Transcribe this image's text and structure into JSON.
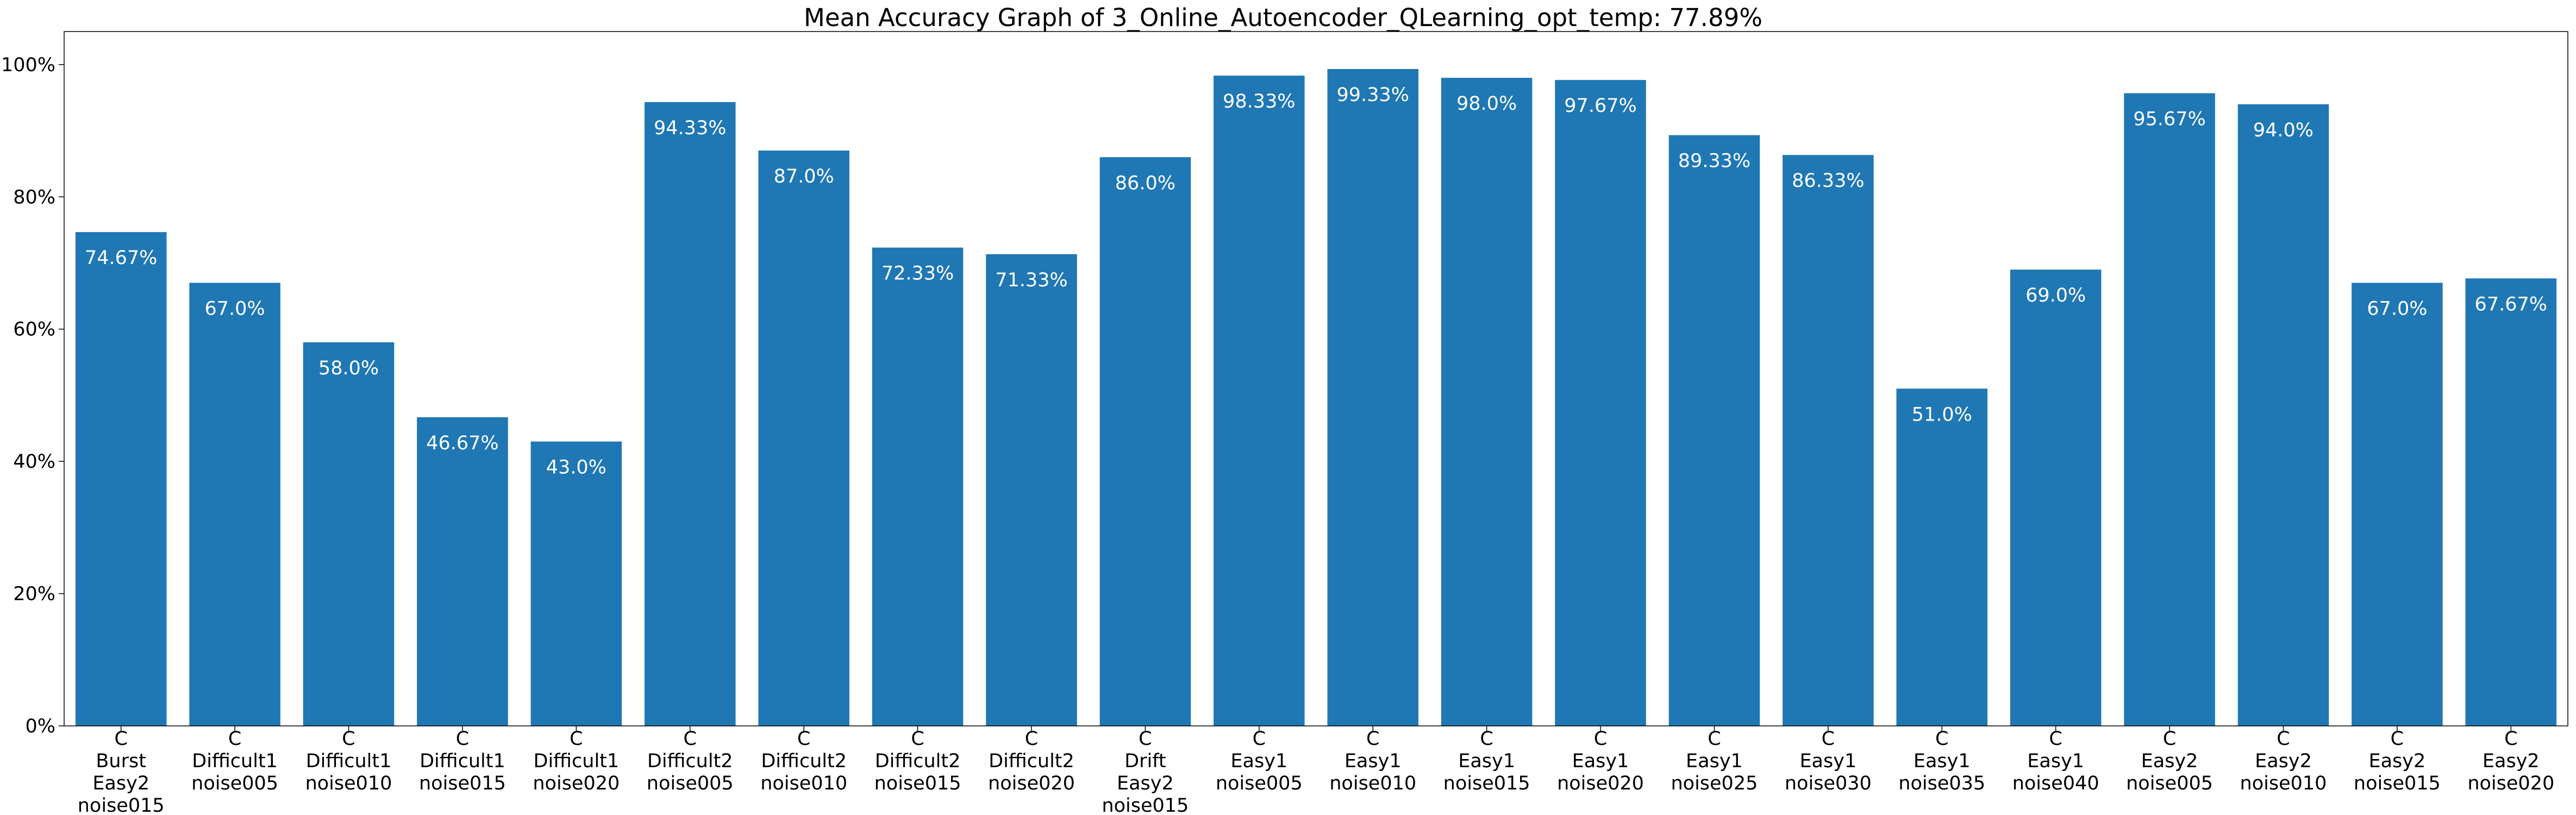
{
  "chart_data": {
    "type": "bar",
    "title": "Mean Accuracy Graph of 3_Online_Autoencoder_QLearning_opt_temp: 77.89%",
    "xlabel": "",
    "ylabel": "",
    "ylim": [
      0,
      1.05
    ],
    "yticks": [
      0,
      0.2,
      0.4,
      0.6,
      0.8,
      1.0
    ],
    "ytick_labels": [
      "0%",
      "20%",
      "40%",
      "60%",
      "80%",
      "100%"
    ],
    "grid": false,
    "bar_color": "#1f77b4",
    "label_color": "#ffffff",
    "categories": [
      [
        "C",
        "Burst",
        "Easy2",
        "noise015"
      ],
      [
        "C",
        "Difficult1",
        "noise005"
      ],
      [
        "C",
        "Difficult1",
        "noise010"
      ],
      [
        "C",
        "Difficult1",
        "noise015"
      ],
      [
        "C",
        "Difficult1",
        "noise020"
      ],
      [
        "C",
        "Difficult2",
        "noise005"
      ],
      [
        "C",
        "Difficult2",
        "noise010"
      ],
      [
        "C",
        "Difficult2",
        "noise015"
      ],
      [
        "C",
        "Difficult2",
        "noise020"
      ],
      [
        "C",
        "Drift",
        "Easy2",
        "noise015"
      ],
      [
        "C",
        "Easy1",
        "noise005"
      ],
      [
        "C",
        "Easy1",
        "noise010"
      ],
      [
        "C",
        "Easy1",
        "noise015"
      ],
      [
        "C",
        "Easy1",
        "noise020"
      ],
      [
        "C",
        "Easy1",
        "noise025"
      ],
      [
        "C",
        "Easy1",
        "noise030"
      ],
      [
        "C",
        "Easy1",
        "noise035"
      ],
      [
        "C",
        "Easy1",
        "noise040"
      ],
      [
        "C",
        "Easy2",
        "noise005"
      ],
      [
        "C",
        "Easy2",
        "noise010"
      ],
      [
        "C",
        "Easy2",
        "noise015"
      ],
      [
        "C",
        "Easy2",
        "noise020"
      ]
    ],
    "values": [
      0.7467,
      0.67,
      0.58,
      0.4667,
      0.43,
      0.9433,
      0.87,
      0.7233,
      0.7133,
      0.86,
      0.9833,
      0.9933,
      0.98,
      0.9767,
      0.8933,
      0.8633,
      0.51,
      0.69,
      0.9567,
      0.94,
      0.67,
      0.6767
    ],
    "value_labels": [
      "74.67%",
      "67.0%",
      "58.0%",
      "46.67%",
      "43.0%",
      "94.33%",
      "87.0%",
      "72.33%",
      "71.33%",
      "86.0%",
      "98.33%",
      "99.33%",
      "98.0%",
      "97.67%",
      "89.33%",
      "86.33%",
      "51.0%",
      "69.0%",
      "95.67%",
      "94.0%",
      "67.0%",
      "67.67%"
    ]
  }
}
